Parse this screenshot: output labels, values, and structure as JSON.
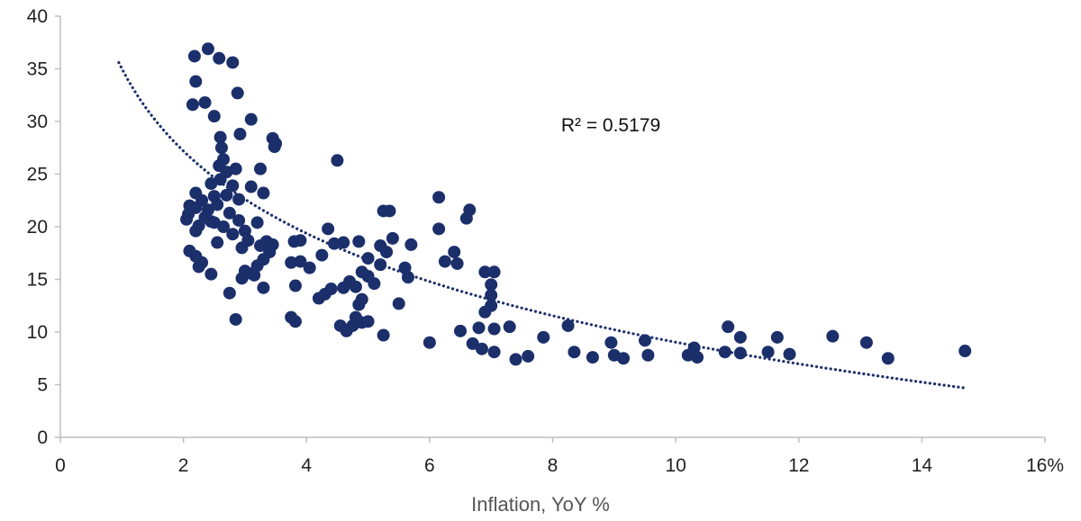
{
  "chart_data": {
    "type": "scatter",
    "title": "",
    "xlabel": "Inflation, YoY %",
    "ylabel": "",
    "xlim": [
      0,
      16
    ],
    "ylim": [
      0,
      40
    ],
    "x_ticks": [
      0,
      2,
      4,
      6,
      8,
      10,
      12,
      14,
      16
    ],
    "x_tick_labels": [
      "0",
      "2",
      "4",
      "6",
      "8",
      "10",
      "12",
      "14",
      "16%"
    ],
    "y_ticks": [
      0,
      5,
      10,
      15,
      20,
      25,
      30,
      35,
      40
    ],
    "y_tick_labels": [
      "0",
      "5",
      "10",
      "15",
      "20",
      "25",
      "30",
      "35",
      "40"
    ],
    "grid": false,
    "marker_color": "#1b2f6b",
    "trendline": {
      "type": "logarithmic",
      "style": "dotted",
      "color": "#1b2f6b",
      "x_range": [
        0.95,
        14.7
      ],
      "points": [
        [
          0.95,
          39.6
        ],
        [
          2.0,
          24.6
        ],
        [
          4.0,
          16.3
        ],
        [
          6.0,
          13.0
        ],
        [
          8.0,
          10.6
        ],
        [
          10.0,
          9.3
        ],
        [
          12.0,
          8.3
        ],
        [
          14.7,
          7.5
        ]
      ]
    },
    "annotation": "R² = 0.5179",
    "points": [
      [
        2.18,
        36.2
      ],
      [
        2.4,
        36.9
      ],
      [
        2.58,
        36.0
      ],
      [
        2.8,
        35.6
      ],
      [
        2.2,
        33.8
      ],
      [
        2.88,
        32.7
      ],
      [
        2.35,
        31.8
      ],
      [
        2.15,
        31.6
      ],
      [
        2.5,
        30.5
      ],
      [
        3.1,
        30.2
      ],
      [
        2.6,
        28.5
      ],
      [
        2.92,
        28.8
      ],
      [
        3.45,
        28.4
      ],
      [
        3.48,
        27.6
      ],
      [
        3.5,
        27.9
      ],
      [
        2.62,
        27.5
      ],
      [
        2.65,
        26.4
      ],
      [
        2.58,
        25.8
      ],
      [
        2.7,
        25.2
      ],
      [
        2.85,
        25.5
      ],
      [
        3.25,
        25.5
      ],
      [
        2.45,
        24.1
      ],
      [
        2.6,
        24.5
      ],
      [
        2.8,
        23.9
      ],
      [
        3.1,
        23.8
      ],
      [
        2.2,
        23.2
      ],
      [
        2.5,
        22.9
      ],
      [
        2.7,
        23.0
      ],
      [
        2.9,
        22.6
      ],
      [
        3.3,
        23.2
      ],
      [
        2.1,
        22.0
      ],
      [
        2.3,
        22.5
      ],
      [
        2.4,
        21.6
      ],
      [
        2.55,
        22.1
      ],
      [
        2.75,
        21.3
      ],
      [
        2.08,
        21.2
      ],
      [
        2.2,
        21.8
      ],
      [
        2.35,
        20.9
      ],
      [
        2.5,
        20.4
      ],
      [
        2.9,
        20.6
      ],
      [
        2.05,
        20.7
      ],
      [
        2.25,
        20.1
      ],
      [
        2.45,
        20.5
      ],
      [
        2.65,
        20.0
      ],
      [
        3.0,
        19.6
      ],
      [
        3.2,
        20.4
      ],
      [
        2.2,
        19.6
      ],
      [
        2.8,
        19.3
      ],
      [
        3.05,
        18.7
      ],
      [
        3.35,
        18.6
      ],
      [
        3.45,
        18.3
      ],
      [
        2.55,
        18.5
      ],
      [
        2.95,
        18.0
      ],
      [
        3.25,
        18.2
      ],
      [
        3.4,
        17.6
      ],
      [
        2.1,
        17.7
      ],
      [
        2.2,
        17.2
      ],
      [
        2.3,
        16.6
      ],
      [
        3.3,
        16.9
      ],
      [
        3.2,
        16.3
      ],
      [
        2.25,
        16.2
      ],
      [
        2.45,
        15.5
      ],
      [
        3.0,
        15.8
      ],
      [
        3.15,
        15.4
      ],
      [
        2.95,
        15.1
      ],
      [
        3.05,
        15.6
      ],
      [
        3.3,
        14.2
      ],
      [
        2.75,
        13.7
      ],
      [
        2.85,
        11.2
      ],
      [
        3.75,
        11.4
      ],
      [
        3.82,
        11.0
      ],
      [
        3.8,
        18.6
      ],
      [
        3.9,
        18.7
      ],
      [
        3.75,
        16.6
      ],
      [
        3.9,
        16.7
      ],
      [
        4.05,
        16.1
      ],
      [
        4.25,
        17.3
      ],
      [
        4.35,
        19.8
      ],
      [
        4.45,
        18.4
      ],
      [
        4.6,
        18.5
      ],
      [
        4.85,
        18.6
      ],
      [
        5.0,
        17.0
      ],
      [
        5.2,
        18.2
      ],
      [
        5.3,
        17.6
      ],
      [
        5.4,
        18.9
      ],
      [
        5.7,
        18.3
      ],
      [
        3.82,
        14.4
      ],
      [
        4.2,
        13.2
      ],
      [
        4.3,
        13.6
      ],
      [
        4.4,
        14.1
      ],
      [
        4.6,
        14.2
      ],
      [
        4.7,
        14.8
      ],
      [
        4.8,
        14.3
      ],
      [
        4.9,
        15.7
      ],
      [
        5.0,
        15.3
      ],
      [
        5.1,
        14.6
      ],
      [
        5.2,
        16.4
      ],
      [
        5.6,
        16.1
      ],
      [
        5.65,
        15.2
      ],
      [
        4.5,
        26.3
      ],
      [
        5.25,
        21.5
      ],
      [
        5.35,
        21.5
      ],
      [
        4.55,
        10.6
      ],
      [
        4.65,
        10.1
      ],
      [
        4.75,
        10.6
      ],
      [
        4.8,
        11.4
      ],
      [
        4.9,
        10.9
      ],
      [
        4.85,
        12.6
      ],
      [
        4.9,
        13.1
      ],
      [
        5.0,
        11.0
      ],
      [
        5.25,
        9.7
      ],
      [
        5.5,
        12.7
      ],
      [
        6.0,
        9.0
      ],
      [
        6.15,
        22.8
      ],
      [
        6.15,
        19.8
      ],
      [
        6.25,
        16.7
      ],
      [
        6.4,
        17.6
      ],
      [
        6.45,
        16.5
      ],
      [
        6.5,
        10.1
      ],
      [
        6.6,
        20.8
      ],
      [
        6.65,
        21.6
      ],
      [
        6.7,
        8.9
      ],
      [
        6.8,
        10.4
      ],
      [
        6.85,
        8.4
      ],
      [
        6.9,
        11.9
      ],
      [
        6.9,
        15.7
      ],
      [
        7.0,
        13.5
      ],
      [
        7.05,
        15.7
      ],
      [
        7.0,
        14.5
      ],
      [
        7.0,
        12.5
      ],
      [
        7.05,
        10.3
      ],
      [
        7.05,
        8.1
      ],
      [
        7.3,
        10.5
      ],
      [
        7.4,
        7.4
      ],
      [
        7.6,
        7.7
      ],
      [
        7.85,
        9.5
      ],
      [
        8.25,
        10.6
      ],
      [
        8.35,
        8.1
      ],
      [
        8.65,
        7.6
      ],
      [
        8.95,
        9.0
      ],
      [
        9.0,
        7.8
      ],
      [
        9.15,
        7.5
      ],
      [
        9.5,
        9.2
      ],
      [
        9.55,
        7.8
      ],
      [
        10.2,
        7.8
      ],
      [
        10.3,
        8.5
      ],
      [
        10.35,
        7.6
      ],
      [
        10.8,
        8.1
      ],
      [
        10.85,
        10.5
      ],
      [
        11.05,
        9.5
      ],
      [
        11.05,
        8.0
      ],
      [
        11.5,
        8.1
      ],
      [
        11.65,
        9.5
      ],
      [
        11.85,
        7.9
      ],
      [
        12.55,
        9.6
      ],
      [
        13.1,
        9.0
      ],
      [
        13.45,
        7.5
      ],
      [
        14.7,
        8.2
      ]
    ]
  }
}
